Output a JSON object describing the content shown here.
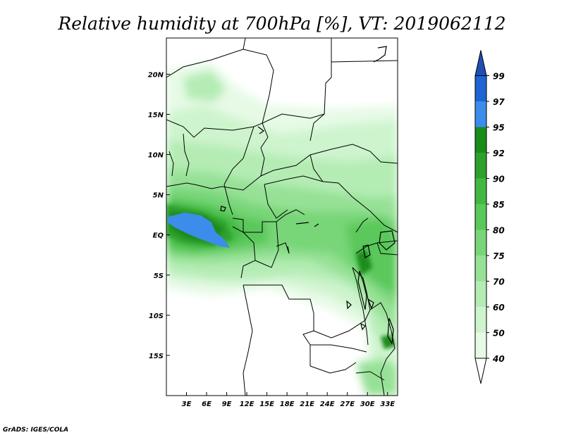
{
  "title": "Relative humidity at 700hPa [%], VT: 2019062112",
  "credit": "GrADS: IGES/COLA",
  "map": {
    "lon_range": [
      0,
      34.5
    ],
    "lat_range": [
      -20,
      24.5
    ],
    "lat_ticks": [
      {
        "value": 20,
        "label": "20N"
      },
      {
        "value": 15,
        "label": "15N"
      },
      {
        "value": 10,
        "label": "10N"
      },
      {
        "value": 5,
        "label": "5N"
      },
      {
        "value": 0,
        "label": "EQ"
      },
      {
        "value": -5,
        "label": "5S"
      },
      {
        "value": -10,
        "label": "10S"
      },
      {
        "value": -15,
        "label": "15S"
      }
    ],
    "lon_ticks": [
      {
        "value": 3,
        "label": "3E"
      },
      {
        "value": 6,
        "label": "6E"
      },
      {
        "value": 9,
        "label": "9E"
      },
      {
        "value": 12,
        "label": "12E"
      },
      {
        "value": 15,
        "label": "15E"
      },
      {
        "value": 18,
        "label": "18E"
      },
      {
        "value": 21,
        "label": "21E"
      },
      {
        "value": 24,
        "label": "24E"
      },
      {
        "value": 27,
        "label": "27E"
      },
      {
        "value": 30,
        "label": "30E"
      },
      {
        "value": 33,
        "label": "33E"
      }
    ]
  },
  "colorbar": {
    "levels": [
      "40",
      "50",
      "60",
      "70",
      "75",
      "80",
      "85",
      "90",
      "92",
      "95",
      "97",
      "99"
    ],
    "colors": [
      "#e6fae6",
      "#cdf4cd",
      "#b4ecb4",
      "#96e196",
      "#78d678",
      "#5ac85a",
      "#41b941",
      "#2da02d",
      "#1a8c1a",
      "#3c8ceb",
      "#1e64d2",
      "#1e50b4"
    ]
  }
}
